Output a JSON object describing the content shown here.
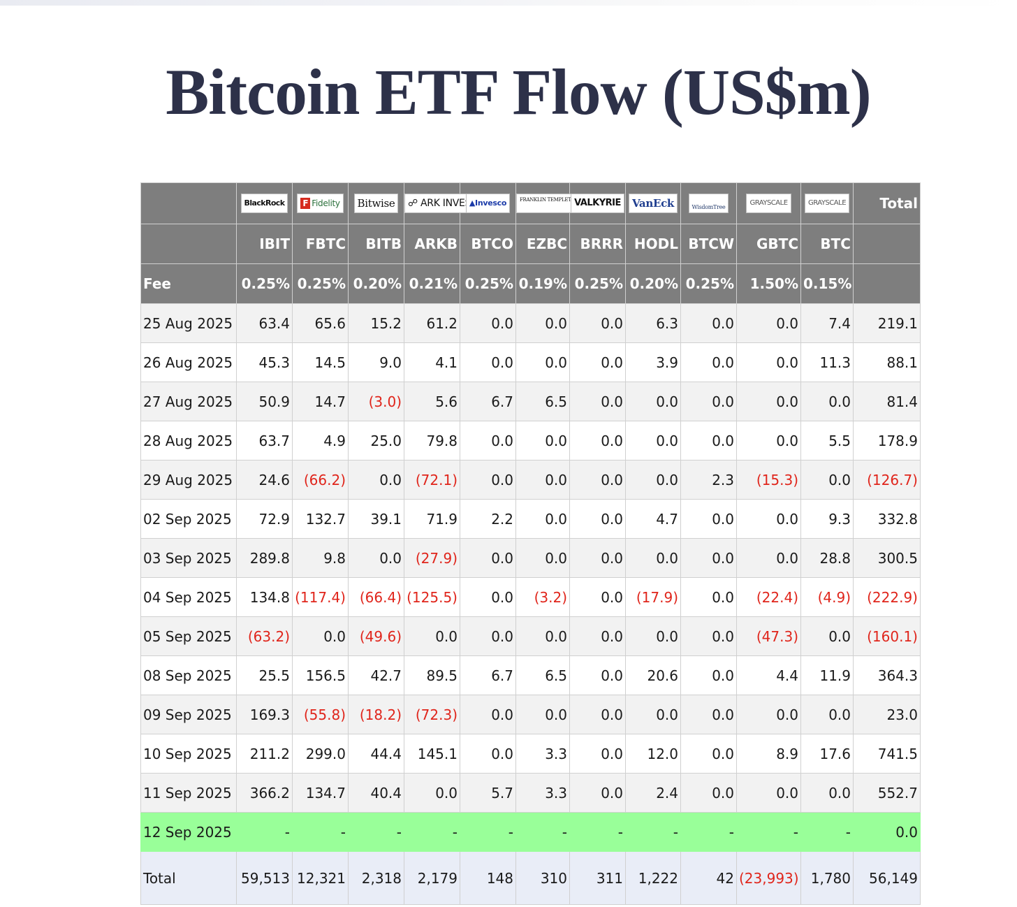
{
  "title": "Bitcoin ETF Flow (US$m)",
  "issuers": [
    {
      "name": "BlackRock",
      "ticker": "IBIT",
      "fee": "0.25%"
    },
    {
      "name": "Fidelity",
      "ticker": "FBTC",
      "fee": "0.25%"
    },
    {
      "name": "Bitwise",
      "ticker": "BITB",
      "fee": "0.20%"
    },
    {
      "name": "ARK INVEST",
      "ticker": "ARKB",
      "fee": "0.21%"
    },
    {
      "name": "Invesco",
      "ticker": "BTCO",
      "fee": "0.25%"
    },
    {
      "name": "FRANKLIN TEMPLETON",
      "ticker": "EZBC",
      "fee": "0.19%"
    },
    {
      "name": "VALKYRIE",
      "ticker": "BRRR",
      "fee": "0.25%"
    },
    {
      "name": "VanEck",
      "ticker": "HODL",
      "fee": "0.20%"
    },
    {
      "name": "WisdomTree",
      "ticker": "BTCW",
      "fee": "0.25%"
    },
    {
      "name": "GRAYSCALE",
      "ticker": "GBTC",
      "fee": "1.50%"
    },
    {
      "name": "GRAYSCALE",
      "ticker": "BTC",
      "fee": "0.15%"
    }
  ],
  "header": {
    "total_label": "Total",
    "fee_label": "Fee"
  },
  "rows": [
    {
      "date": "25 Aug 2025",
      "values": [
        "63.4",
        "65.6",
        "15.2",
        "61.2",
        "0.0",
        "0.0",
        "0.0",
        "6.3",
        "0.0",
        "0.0",
        "7.4"
      ],
      "total": "219.1"
    },
    {
      "date": "26 Aug 2025",
      "values": [
        "45.3",
        "14.5",
        "9.0",
        "4.1",
        "0.0",
        "0.0",
        "0.0",
        "3.9",
        "0.0",
        "0.0",
        "11.3"
      ],
      "total": "88.1"
    },
    {
      "date": "27 Aug 2025",
      "values": [
        "50.9",
        "14.7",
        "(3.0)",
        "5.6",
        "6.7",
        "6.5",
        "0.0",
        "0.0",
        "0.0",
        "0.0",
        "0.0"
      ],
      "total": "81.4"
    },
    {
      "date": "28 Aug 2025",
      "values": [
        "63.7",
        "4.9",
        "25.0",
        "79.8",
        "0.0",
        "0.0",
        "0.0",
        "0.0",
        "0.0",
        "0.0",
        "5.5"
      ],
      "total": "178.9"
    },
    {
      "date": "29 Aug 2025",
      "values": [
        "24.6",
        "(66.2)",
        "0.0",
        "(72.1)",
        "0.0",
        "0.0",
        "0.0",
        "0.0",
        "2.3",
        "(15.3)",
        "0.0"
      ],
      "total": "(126.7)"
    },
    {
      "date": "02 Sep 2025",
      "values": [
        "72.9",
        "132.7",
        "39.1",
        "71.9",
        "2.2",
        "0.0",
        "0.0",
        "4.7",
        "0.0",
        "0.0",
        "9.3"
      ],
      "total": "332.8"
    },
    {
      "date": "03 Sep 2025",
      "values": [
        "289.8",
        "9.8",
        "0.0",
        "(27.9)",
        "0.0",
        "0.0",
        "0.0",
        "0.0",
        "0.0",
        "0.0",
        "28.8"
      ],
      "total": "300.5"
    },
    {
      "date": "04 Sep 2025",
      "values": [
        "134.8",
        "(117.4)",
        "(66.4)",
        "(125.5)",
        "0.0",
        "(3.2)",
        "0.0",
        "(17.9)",
        "0.0",
        "(22.4)",
        "(4.9)"
      ],
      "total": "(222.9)"
    },
    {
      "date": "05 Sep 2025",
      "values": [
        "(63.2)",
        "0.0",
        "(49.6)",
        "0.0",
        "0.0",
        "0.0",
        "0.0",
        "0.0",
        "0.0",
        "(47.3)",
        "0.0"
      ],
      "total": "(160.1)"
    },
    {
      "date": "08 Sep 2025",
      "values": [
        "25.5",
        "156.5",
        "42.7",
        "89.5",
        "6.7",
        "6.5",
        "0.0",
        "20.6",
        "0.0",
        "4.4",
        "11.9"
      ],
      "total": "364.3"
    },
    {
      "date": "09 Sep 2025",
      "values": [
        "169.3",
        "(55.8)",
        "(18.2)",
        "(72.3)",
        "0.0",
        "0.0",
        "0.0",
        "0.0",
        "0.0",
        "0.0",
        "0.0"
      ],
      "total": "23.0"
    },
    {
      "date": "10 Sep 2025",
      "values": [
        "211.2",
        "299.0",
        "44.4",
        "145.1",
        "0.0",
        "3.3",
        "0.0",
        "12.0",
        "0.0",
        "8.9",
        "17.6"
      ],
      "total": "741.5"
    },
    {
      "date": "11 Sep 2025",
      "values": [
        "366.2",
        "134.7",
        "40.4",
        "0.0",
        "5.7",
        "3.3",
        "0.0",
        "2.4",
        "0.0",
        "0.0",
        "0.0"
      ],
      "total": "552.7"
    },
    {
      "date": "12 Sep 2025",
      "values": [
        "-",
        "-",
        "-",
        "-",
        "-",
        "-",
        "-",
        "-",
        "-",
        "-",
        "-"
      ],
      "total": "0.0"
    }
  ],
  "totals": {
    "label": "Total",
    "values": [
      "59,513",
      "12,321",
      "2,318",
      "2,179",
      "148",
      "310",
      "311",
      "1,222",
      "42",
      "(23,993)",
      "1,780"
    ],
    "total": "56,149"
  },
  "colors": {
    "header_bg": "#7e7e7e",
    "negative": "#e0251b",
    "current_row": "#99ff99",
    "total_row": "#e9edf7",
    "title": "#2d3149"
  }
}
